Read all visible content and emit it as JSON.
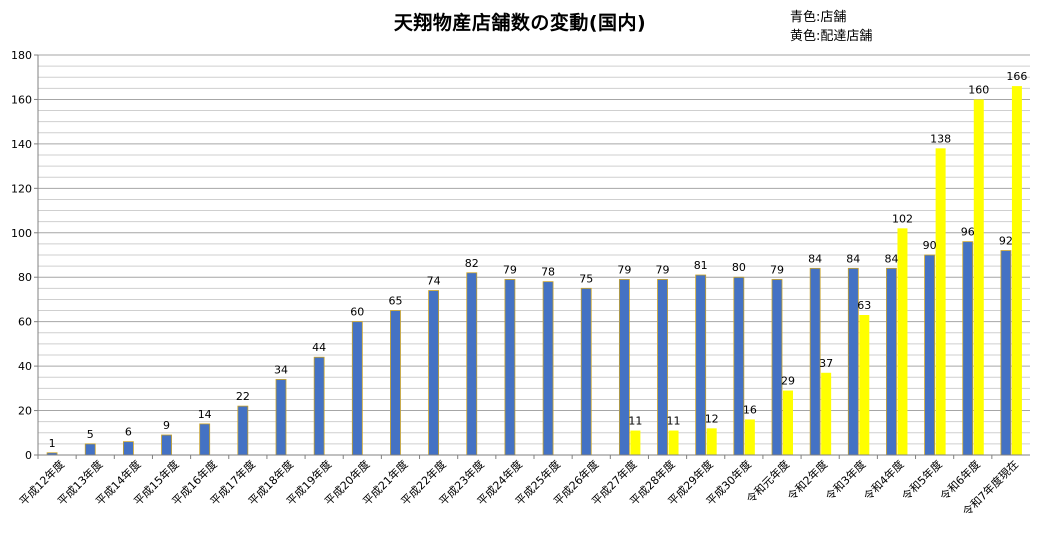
{
  "chart_data": {
    "type": "bar",
    "title": "天翔物産店舗数の変動(国内)",
    "legend_placement": "top-right",
    "legend_notes": [
      "青色:店舗",
      "黄色:配達店舗"
    ],
    "categories": [
      "平成12年度",
      "平成13年度",
      "平成14年度",
      "平成15年度",
      "平成16年度",
      "平成17年度",
      "平成18年度",
      "平成19年度",
      "平成20年度",
      "平成21年度",
      "平成22年度",
      "平成23年度",
      "平成24年度",
      "平成25年度",
      "平成26年度",
      "平成27年度",
      "平成28年度",
      "平成29年度",
      "平成30年度",
      "令和元年度",
      "令和2年度",
      "令和3年度",
      "令和4年度",
      "令和5年度",
      "令和6年度",
      "令和7年度現在"
    ],
    "series": [
      {
        "color": "#4472C4",
        "values": [
          1,
          5,
          6,
          9,
          14,
          22,
          34,
          44,
          60,
          65,
          74,
          82,
          79,
          78,
          75,
          79,
          79,
          81,
          80,
          79,
          84,
          84,
          84,
          90,
          96,
          92
        ]
      },
      {
        "color": "#FFFF00",
        "values": [
          null,
          null,
          null,
          null,
          null,
          null,
          null,
          null,
          null,
          null,
          null,
          null,
          null,
          null,
          null,
          11,
          11,
          12,
          16,
          29,
          37,
          63,
          102,
          138,
          160,
          166
        ]
      }
    ],
    "ylim": [
      0,
      180
    ],
    "yticks": [
      0,
      20,
      40,
      60,
      80,
      100,
      120,
      140,
      160,
      180
    ],
    "ygrid_step": 5,
    "grid": true,
    "xlabel": "",
    "ylabel": ""
  }
}
